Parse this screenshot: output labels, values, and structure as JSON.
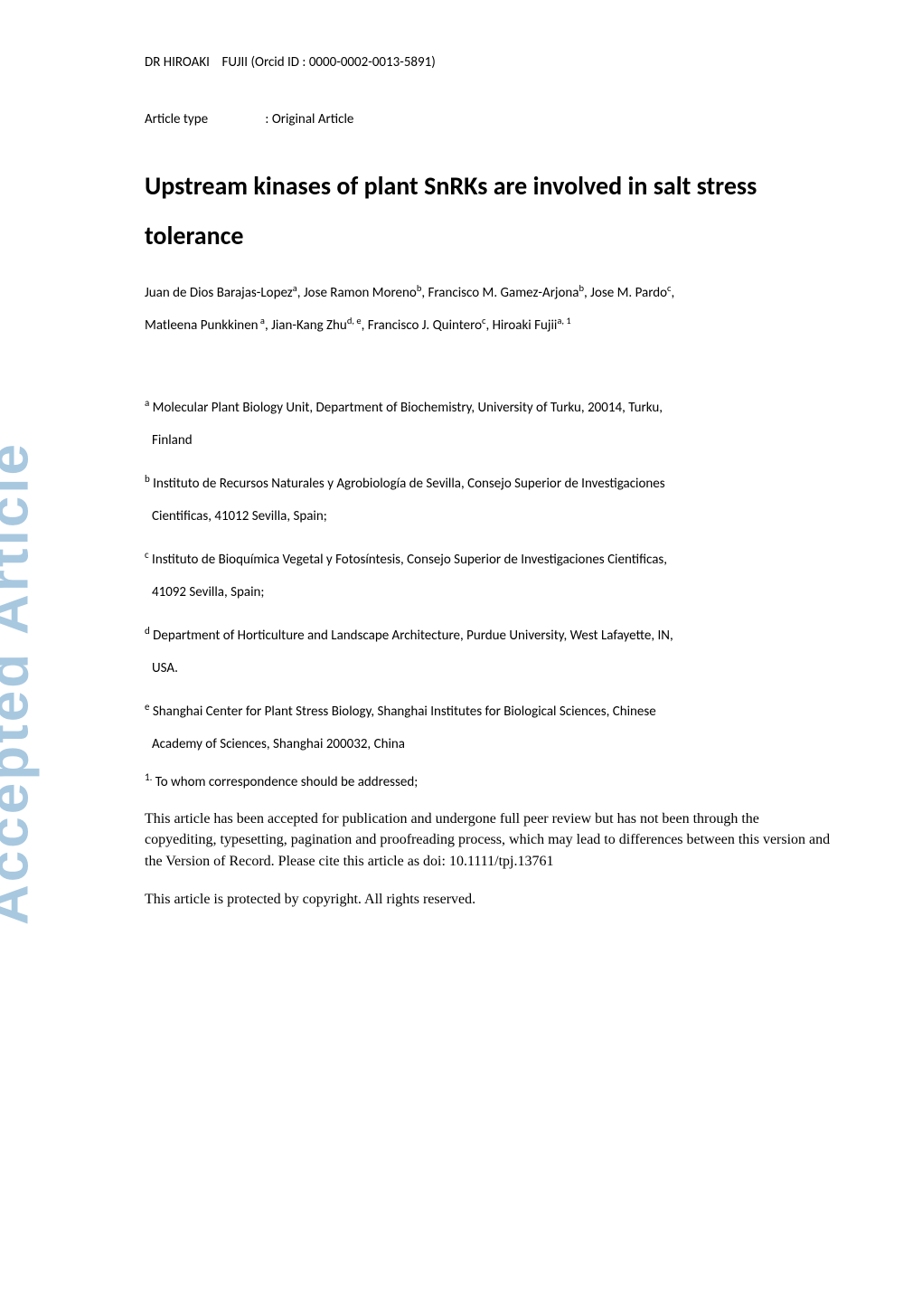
{
  "watermark": "Accepted Article",
  "orcid": {
    "prefix": "DR HIROAKI",
    "name": "FUJII",
    "id_text": "(Orcid ID : 0000-0002-0013-5891)"
  },
  "article_type": {
    "label": "Article type",
    "separator": ":",
    "value": "Original Article"
  },
  "title_line1": "Upstream kinases of plant SnRKs are involved in salt stress",
  "title_line2": "tolerance",
  "authors_line1": "Juan de Dios Barajas-Lopez",
  "authors_sup1": "a",
  "authors_sep1": ", Jose Ramon Moreno",
  "authors_sup2": "b",
  "authors_sep2": ", Francisco M. Gamez-Arjona",
  "authors_sup3": "b",
  "authors_sep3": ", Jose M. Pardo",
  "authors_sup4": "c",
  "authors_sep4": ",",
  "authors_line2a": "Matleena Punkkinen",
  "authors_sup5": " a",
  "authors_sep5": ", Jian-Kang Zhu",
  "authors_sup6": "d, e",
  "authors_sep6": ", Francisco J. Quintero",
  "authors_sup7": "c",
  "authors_sep7": ", Hiroaki Fujii",
  "authors_sup8": "a, 1",
  "affiliations": {
    "a": {
      "sup": "a",
      "text": " Molecular Plant Biology Unit, Department of Biochemistry, University of Turku, 20014, Turku,",
      "text2": "Finland"
    },
    "b": {
      "sup": "b",
      "text": " Instituto de Recursos Naturales y Agrobiología de Sevilla, Consejo Superior de Investigaciones",
      "text2": "Cientificas, 41012 Sevilla, Spain;"
    },
    "c": {
      "sup": "c",
      "text": " Instituto de Bioquímica Vegetal y Fotosíntesis, Consejo Superior de Investigaciones Cientificas,",
      "text2": "41092 Sevilla, Spain;"
    },
    "d": {
      "sup": "d",
      "text": " Department of Horticulture and Landscape Architecture, Purdue University, West Lafayette, IN,",
      "text2": "USA."
    },
    "e": {
      "sup": "e",
      "text": " Shanghai Center for Plant Stress Biology, Shanghai Institutes for Biological Sciences, Chinese",
      "text2": "Academy of Sciences, Shanghai 200032, China"
    }
  },
  "corresponding": {
    "sup": "1.",
    "text": " To whom correspondence should be addressed;"
  },
  "disclaimer": "This article has been accepted for publication and undergone full peer review but has not been through the copyediting, typesetting, pagination and proofreading process, which may lead to differences between this version and the Version of Record. Please cite this article as doi: 10.1111/tpj.13761",
  "copyright": "This article is protected by copyright. All rights reserved.",
  "colors": {
    "watermark": "#a8c8e0",
    "text": "#000000",
    "background": "#ffffff"
  },
  "typography": {
    "body_font": "Calibri",
    "disclaimer_font": "Times New Roman",
    "title_fontsize": 28,
    "body_fontsize": 15,
    "disclaimer_fontsize": 16,
    "watermark_fontsize": 62
  }
}
